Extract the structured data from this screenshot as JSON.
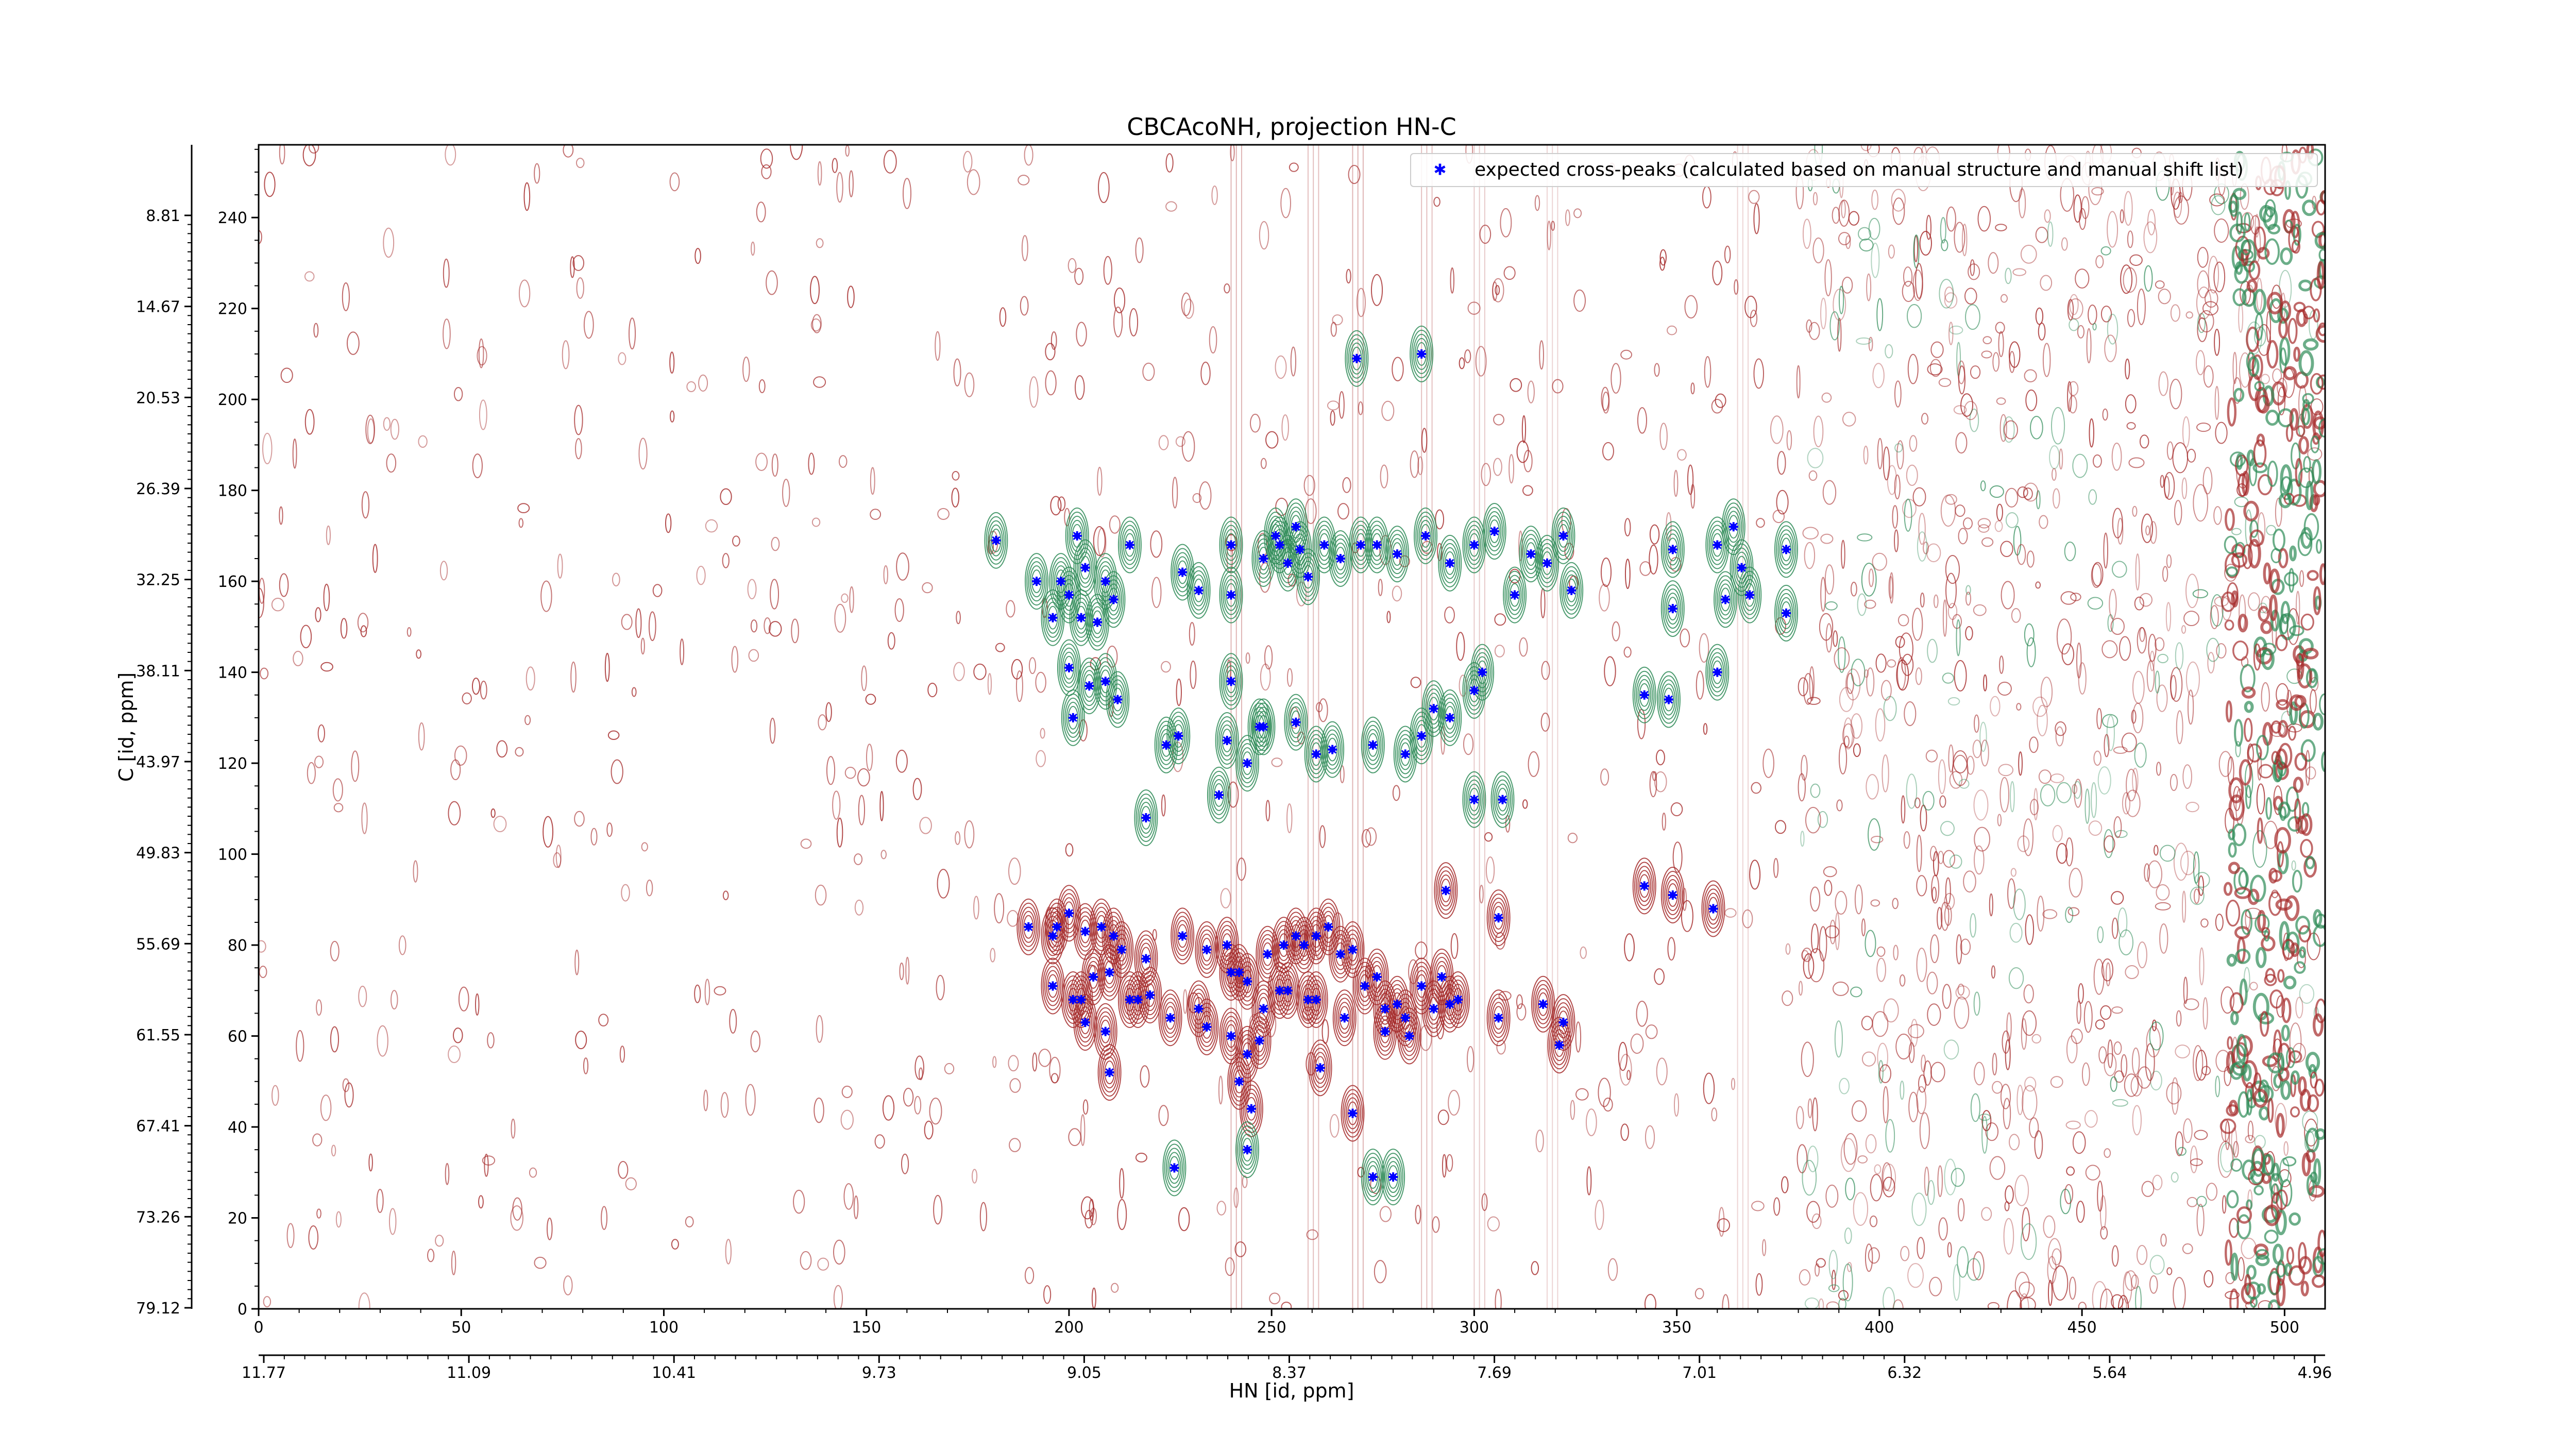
{
  "chart_data": {
    "type": "scatter",
    "title": "CBCAcoNH, projection HN-C",
    "xlabel": "HN [id, ppm]",
    "ylabel": "C [id, ppm]",
    "x_index_range": [
      0,
      510
    ],
    "y_index_range": [
      0,
      256
    ],
    "x_index_ticks": [
      0,
      50,
      100,
      150,
      200,
      250,
      300,
      350,
      400,
      450,
      500
    ],
    "y_index_ticks": [
      0,
      20,
      40,
      60,
      80,
      100,
      120,
      140,
      160,
      180,
      200,
      220,
      240
    ],
    "x_ppm_ticks": [
      "11.77",
      "11.09",
      "10.41",
      "9.73",
      "9.05",
      "8.37",
      "7.69",
      "7.01",
      "6.32",
      "5.64",
      "4.96"
    ],
    "y_ppm_ticks": [
      "79.12",
      "73.26",
      "67.41",
      "61.55",
      "55.69",
      "49.83",
      "43.97",
      "38.11",
      "32.25",
      "26.39",
      "20.53",
      "14.67",
      "8.81"
    ],
    "legend": {
      "label": "expected cross-peaks (calculated based on manual structure and manual shift list)",
      "position": "top-right"
    },
    "grid": false,
    "colors": {
      "peak_marker": "#0000ff",
      "positive_contour": "#2e8b57",
      "negative_contour": "#a52a2a"
    },
    "series": [
      {
        "name": "expected cross-peaks (calculated based on manual structure and manual shift list)",
        "points": [
          [
            182,
            169
          ],
          [
            192,
            160
          ],
          [
            198,
            160
          ],
          [
            200,
            157
          ],
          [
            202,
            170
          ],
          [
            204,
            163
          ],
          [
            196,
            152
          ],
          [
            203,
            152
          ],
          [
            209,
            160
          ],
          [
            211,
            156
          ],
          [
            207,
            151
          ],
          [
            215,
            168
          ],
          [
            228,
            162
          ],
          [
            232,
            158
          ],
          [
            240,
            168
          ],
          [
            240,
            157
          ],
          [
            248,
            165
          ],
          [
            251,
            170
          ],
          [
            252,
            168
          ],
          [
            254,
            164
          ],
          [
            256,
            172
          ],
          [
            257,
            167
          ],
          [
            259,
            161
          ],
          [
            263,
            168
          ],
          [
            267,
            165
          ],
          [
            272,
            168
          ],
          [
            276,
            168
          ],
          [
            281,
            166
          ],
          [
            288,
            170
          ],
          [
            294,
            164
          ],
          [
            300,
            168
          ],
          [
            305,
            171
          ],
          [
            310,
            157
          ],
          [
            314,
            166
          ],
          [
            318,
            164
          ],
          [
            322,
            170
          ],
          [
            324,
            158
          ],
          [
            349,
            167
          ],
          [
            349,
            154
          ],
          [
            360,
            168
          ],
          [
            362,
            156
          ],
          [
            364,
            172
          ],
          [
            366,
            163
          ],
          [
            368,
            157
          ],
          [
            377,
            167
          ],
          [
            377,
            153
          ],
          [
            200,
            141
          ],
          [
            205,
            137
          ],
          [
            209,
            138
          ],
          [
            212,
            134
          ],
          [
            201,
            130
          ],
          [
            224,
            124
          ],
          [
            227,
            126
          ],
          [
            240,
            138
          ],
          [
            239,
            125
          ],
          [
            244,
            120
          ],
          [
            247,
            128
          ],
          [
            248,
            128
          ],
          [
            256,
            129
          ],
          [
            261,
            122
          ],
          [
            265,
            123
          ],
          [
            275,
            124
          ],
          [
            283,
            122
          ],
          [
            287,
            126
          ],
          [
            290,
            132
          ],
          [
            294,
            130
          ],
          [
            300,
            136
          ],
          [
            302,
            140
          ],
          [
            342,
            135
          ],
          [
            348,
            134
          ],
          [
            360,
            140
          ],
          [
            307,
            112
          ],
          [
            300,
            112
          ],
          [
            237,
            113
          ],
          [
            219,
            108
          ],
          [
            190,
            84
          ],
          [
            196,
            82
          ],
          [
            197,
            84
          ],
          [
            200,
            87
          ],
          [
            204,
            83
          ],
          [
            208,
            84
          ],
          [
            211,
            82
          ],
          [
            213,
            79
          ],
          [
            219,
            77
          ],
          [
            206,
            73
          ],
          [
            210,
            74
          ],
          [
            217,
            68
          ],
          [
            201,
            68
          ],
          [
            203,
            68
          ],
          [
            228,
            82
          ],
          [
            234,
            79
          ],
          [
            239,
            80
          ],
          [
            242,
            74
          ],
          [
            244,
            72
          ],
          [
            249,
            78
          ],
          [
            253,
            80
          ],
          [
            256,
            82
          ],
          [
            258,
            80
          ],
          [
            261,
            82
          ],
          [
            264,
            84
          ],
          [
            267,
            78
          ],
          [
            270,
            79
          ],
          [
            273,
            71
          ],
          [
            276,
            73
          ],
          [
            278,
            66
          ],
          [
            281,
            67
          ],
          [
            283,
            64
          ],
          [
            287,
            71
          ],
          [
            290,
            66
          ],
          [
            292,
            73
          ],
          [
            294,
            67
          ],
          [
            296,
            68
          ],
          [
            252,
            70
          ],
          [
            254,
            70
          ],
          [
            259,
            68
          ],
          [
            261,
            68
          ],
          [
            248,
            66
          ],
          [
            232,
            66
          ],
          [
            234,
            62
          ],
          [
            240,
            60
          ],
          [
            244,
            56
          ],
          [
            247,
            59
          ],
          [
            225,
            64
          ],
          [
            220,
            69
          ],
          [
            204,
            63
          ],
          [
            209,
            61
          ],
          [
            215,
            68
          ],
          [
            240,
            74
          ],
          [
            306,
            64
          ],
          [
            317,
            67
          ],
          [
            322,
            63
          ],
          [
            321,
            58
          ],
          [
            268,
            64
          ],
          [
            278,
            61
          ],
          [
            284,
            60
          ],
          [
            306,
            86
          ],
          [
            293,
            92
          ],
          [
            342,
            93
          ],
          [
            349,
            91
          ],
          [
            359,
            88
          ],
          [
            196,
            71
          ],
          [
            210,
            52
          ],
          [
            242,
            50
          ],
          [
            245,
            44
          ],
          [
            262,
            53
          ],
          [
            270,
            43
          ],
          [
            226,
            31
          ],
          [
            244,
            35
          ],
          [
            275,
            29
          ],
          [
            280,
            29
          ],
          [
            271,
            209
          ],
          [
            287,
            210
          ]
        ]
      }
    ]
  }
}
